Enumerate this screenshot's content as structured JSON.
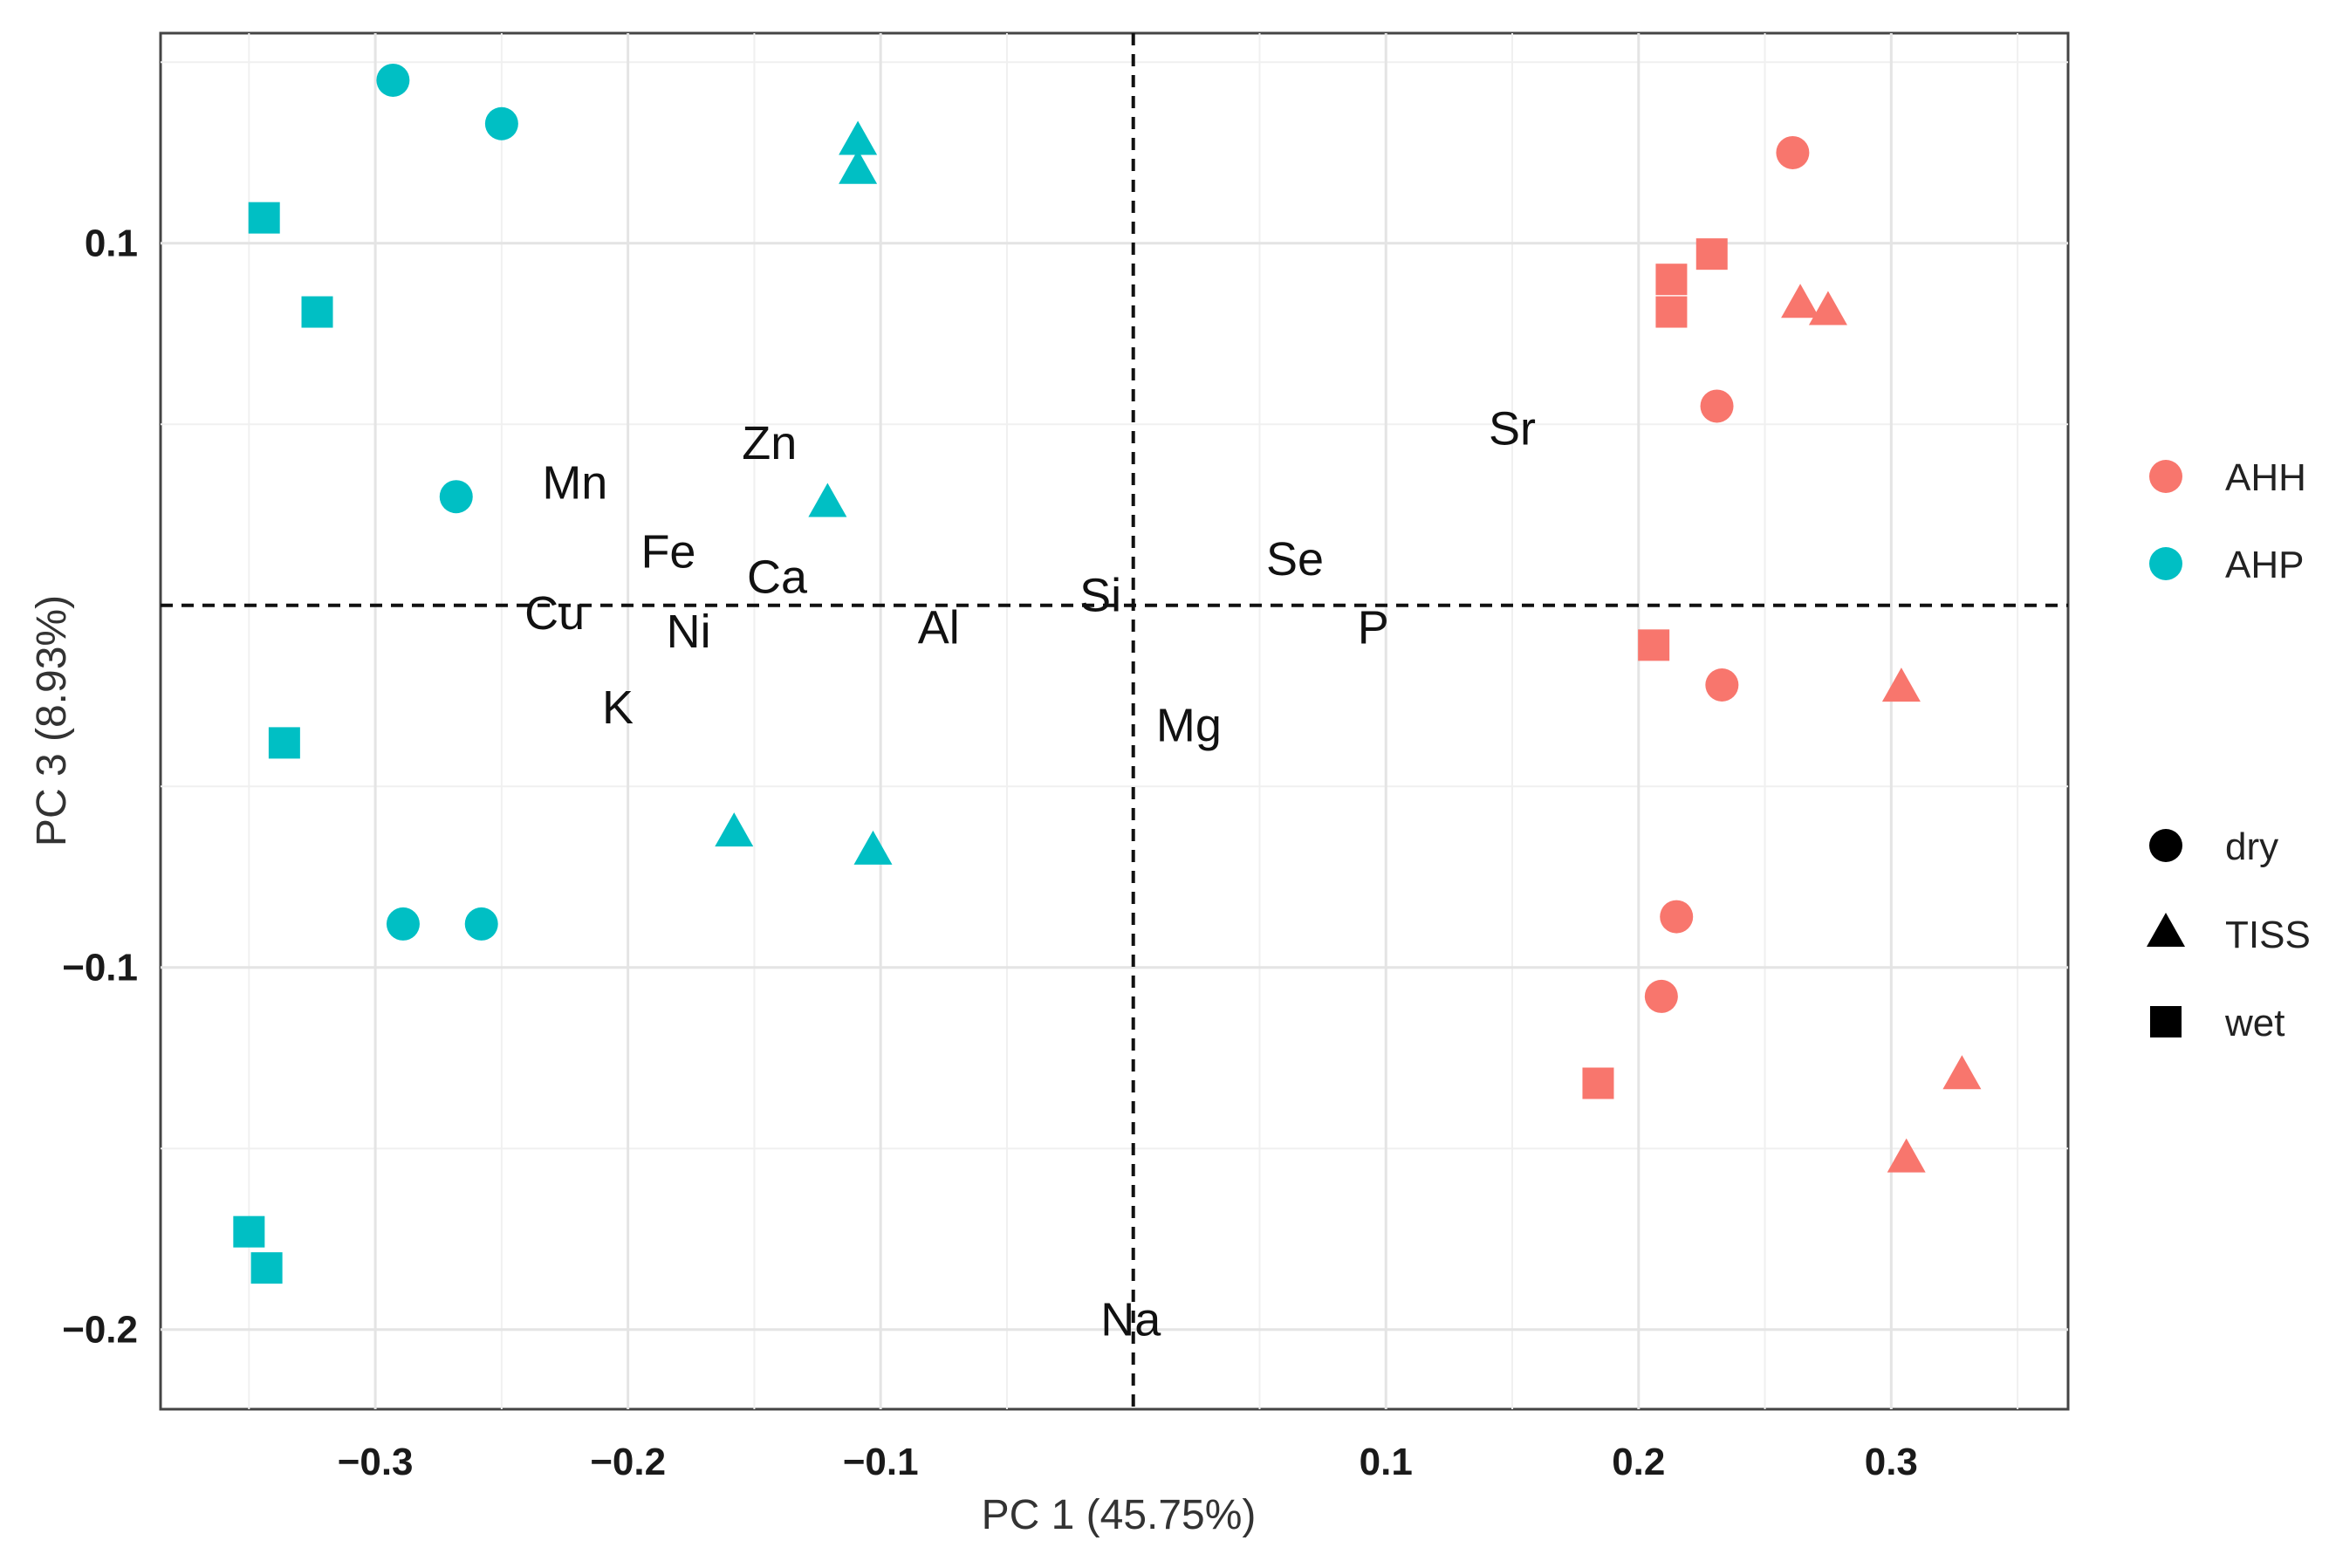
{
  "chart_data": {
    "type": "scatter",
    "title": "",
    "xlabel": "PC 1 (45.75%)",
    "ylabel": "PC 3 (8.93%)",
    "xlim": [
      -0.385,
      0.37
    ],
    "ylim": [
      -0.222,
      0.158
    ],
    "x_ticks": [
      -0.3,
      -0.2,
      -0.1,
      0.1,
      0.2,
      0.3
    ],
    "x_tick_labels": [
      "−0.3",
      "−0.2",
      "−0.1",
      "0.1",
      "0.2",
      "0.3"
    ],
    "y_ticks": [
      0.1,
      -0.1,
      -0.2
    ],
    "y_tick_labels": [
      "0.1",
      "−0.1",
      "−0.2"
    ],
    "x_minor_grid": [
      -0.35,
      -0.25,
      -0.15,
      -0.05,
      0.05,
      0.15,
      0.25,
      0.35
    ],
    "y_minor_grid": [
      0.15,
      0.05,
      -0.05,
      -0.15
    ],
    "ref_lines": {
      "x": 0,
      "y": 0
    },
    "colors": {
      "AHH": "#f8766d",
      "AHP": "#00bfc4"
    },
    "legend": {
      "color_title": "",
      "color_entries": [
        {
          "label": "AHH",
          "group": "AHH"
        },
        {
          "label": "AHP",
          "group": "AHP"
        }
      ],
      "shape_entries": [
        {
          "label": "dry",
          "shape": "circle"
        },
        {
          "label": "TISS",
          "shape": "triangle"
        },
        {
          "label": "wet",
          "shape": "square"
        }
      ],
      "placement": "right"
    },
    "series": [
      {
        "name": "AHP dry",
        "group": "AHP",
        "shape": "circle",
        "points": [
          [
            -0.293,
            0.145
          ],
          [
            -0.25,
            0.133
          ],
          [
            -0.268,
            0.03
          ],
          [
            -0.289,
            -0.088
          ],
          [
            -0.258,
            -0.088
          ]
        ]
      },
      {
        "name": "AHP TISS",
        "group": "AHP",
        "shape": "triangle",
        "points": [
          [
            -0.109,
            0.128
          ],
          [
            -0.109,
            0.12
          ],
          [
            -0.121,
            0.028
          ],
          [
            -0.158,
            -0.063
          ],
          [
            -0.103,
            -0.068
          ]
        ]
      },
      {
        "name": "AHP wet",
        "group": "AHP",
        "shape": "square",
        "points": [
          [
            -0.344,
            0.107
          ],
          [
            -0.323,
            0.081
          ],
          [
            -0.336,
            -0.038
          ],
          [
            -0.35,
            -0.173
          ],
          [
            -0.343,
            -0.183
          ]
        ]
      },
      {
        "name": "AHH dry",
        "group": "AHH",
        "shape": "circle",
        "points": [
          [
            0.261,
            0.125
          ],
          [
            0.231,
            0.055
          ],
          [
            0.233,
            -0.022
          ],
          [
            0.215,
            -0.086
          ],
          [
            0.209,
            -0.108
          ]
        ]
      },
      {
        "name": "AHH TISS",
        "group": "AHH",
        "shape": "triangle",
        "points": [
          [
            0.264,
            0.083
          ],
          [
            0.275,
            0.081
          ],
          [
            0.304,
            -0.023
          ],
          [
            0.328,
            -0.13
          ],
          [
            0.306,
            -0.153
          ]
        ]
      },
      {
        "name": "AHH wet",
        "group": "AHH",
        "shape": "square",
        "points": [
          [
            0.229,
            0.097
          ],
          [
            0.213,
            0.09
          ],
          [
            0.213,
            0.081
          ],
          [
            0.206,
            -0.011
          ],
          [
            0.184,
            -0.132
          ]
        ]
      }
    ],
    "variable_labels": [
      {
        "label": "Mn",
        "x": -0.221,
        "y": 0.034
      },
      {
        "label": "Zn",
        "x": -0.144,
        "y": 0.045
      },
      {
        "label": "Fe",
        "x": -0.184,
        "y": 0.015
      },
      {
        "label": "Ca",
        "x": -0.141,
        "y": 0.008
      },
      {
        "label": "Cu",
        "x": -0.229,
        "y": -0.002
      },
      {
        "label": "Ni",
        "x": -0.176,
        "y": -0.007
      },
      {
        "label": "Al",
        "x": -0.077,
        "y": -0.006
      },
      {
        "label": "Si",
        "x": -0.013,
        "y": 0.003
      },
      {
        "label": "K",
        "x": -0.204,
        "y": -0.028
      },
      {
        "label": "Mg",
        "x": 0.022,
        "y": -0.033
      },
      {
        "label": "Se",
        "x": 0.064,
        "y": 0.013
      },
      {
        "label": "P",
        "x": 0.095,
        "y": -0.006
      },
      {
        "label": "Sr",
        "x": 0.15,
        "y": 0.049
      },
      {
        "label": "Na",
        "x": -0.001,
        "y": -0.197
      }
    ]
  }
}
